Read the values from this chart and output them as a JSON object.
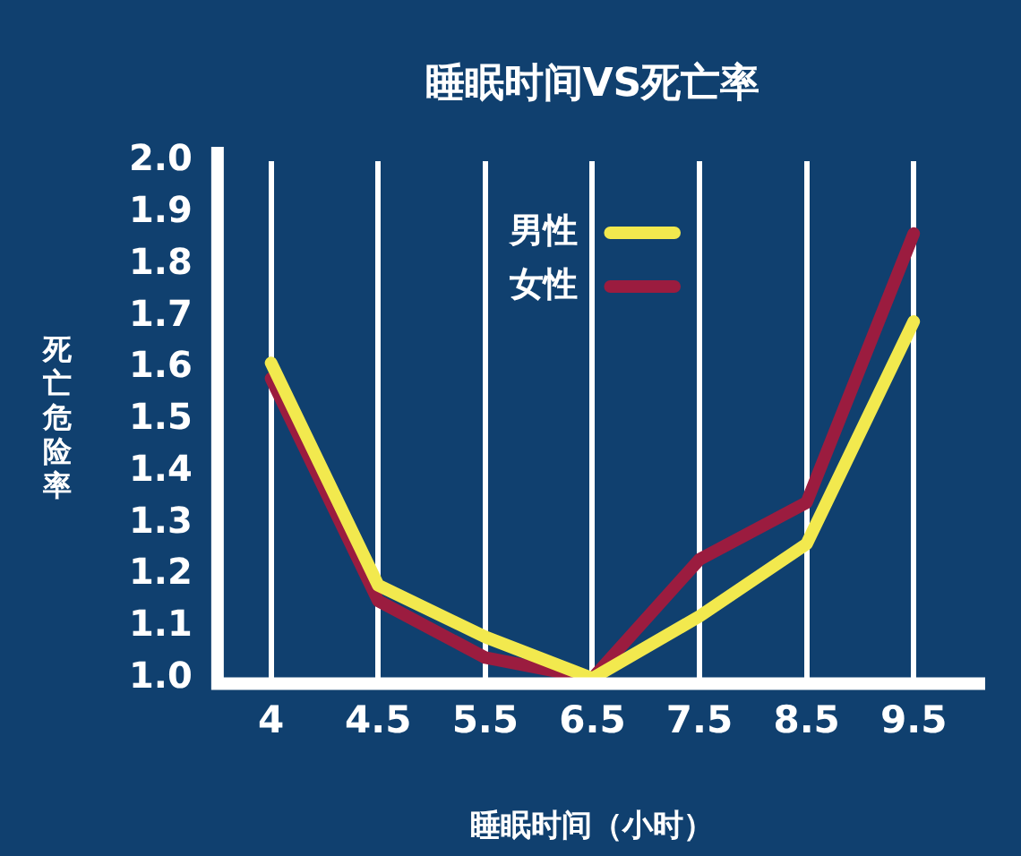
{
  "chart_data": {
    "type": "line",
    "title": "睡眠时间VS死亡率",
    "xlabel": "睡眠时间（小时）",
    "ylabel": "死亡危险率",
    "categories": [
      "4",
      "4.5",
      "5.5",
      "6.5",
      "7.5",
      "8.5",
      "9.5"
    ],
    "series": [
      {
        "name": "男性",
        "color": "#f2e94e",
        "values": [
          1.61,
          1.18,
          1.08,
          1.0,
          1.12,
          1.26,
          1.69
        ]
      },
      {
        "name": "女性",
        "color": "#9b1c3f",
        "values": [
          1.58,
          1.15,
          1.04,
          1.0,
          1.23,
          1.34,
          1.86
        ]
      }
    ],
    "ylim": [
      1.0,
      2.0
    ],
    "yticks": [
      {
        "value": 1.0,
        "label": "1.0"
      },
      1.1,
      1.2,
      1.3,
      1.4,
      1.5,
      1.6,
      1.7,
      1.8,
      1.9,
      {
        "value": 2.0,
        "label": "2.0"
      }
    ],
    "grid": "x",
    "legend": "top",
    "marker": "none",
    "line_style": "solid"
  }
}
